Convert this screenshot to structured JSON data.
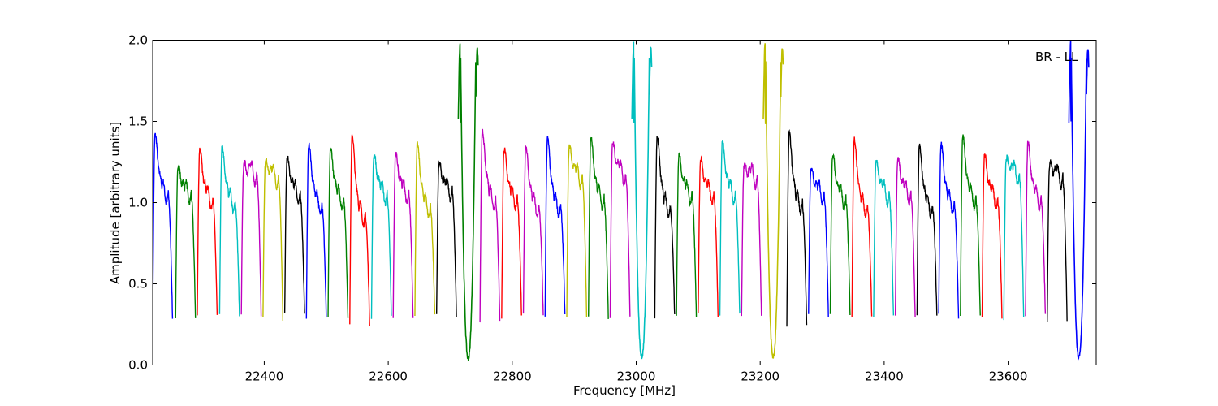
{
  "chart_data": {
    "type": "line",
    "title": "",
    "xlabel": "Frequency [MHz]",
    "ylabel": "Amplitude [arbitrary units]",
    "annotation": "BR - LL",
    "xlim": [
      22220,
      23742
    ],
    "ylim": [
      0,
      2
    ],
    "xticks": [
      22400,
      22600,
      22800,
      23000,
      23200,
      23400,
      23600
    ],
    "yticks": [
      0.0,
      0.5,
      1.0,
      1.5,
      2.0
    ],
    "xtick_labels": [
      "22400",
      "22600",
      "22800",
      "23000",
      "23200",
      "23400",
      "23600"
    ],
    "ytick_labels": [
      "0.0",
      "0.5",
      "1.0",
      "1.5",
      "2.0"
    ],
    "grid": false,
    "legend": "none",
    "color_cycle": [
      "#0000ff",
      "#008000",
      "#ff0000",
      "#00bfbf",
      "#bf00bf",
      "#bfbf00",
      "#000000"
    ],
    "subband_width_mhz": 32,
    "subbands": [
      {
        "x_start": 22220,
        "color": "#0000ff",
        "peak": 1.42,
        "shoulder": 1.08,
        "floor": 0.28
      },
      {
        "x_start": 22257,
        "color": "#008000",
        "peak": 1.22,
        "shoulder": 1.08,
        "floor": 0.3
      },
      {
        "x_start": 22292,
        "color": "#ff0000",
        "peak": 1.33,
        "shoulder": 1.05,
        "floor": 0.3
      },
      {
        "x_start": 22328,
        "color": "#00bfbf",
        "peak": 1.34,
        "shoulder": 1.03,
        "floor": 0.3
      },
      {
        "x_start": 22363,
        "color": "#bf00bf",
        "peak": 1.22,
        "shoulder": 1.2,
        "floor": 0.3
      },
      {
        "x_start": 22398,
        "color": "#bfbf00",
        "peak": 1.24,
        "shoulder": 1.18,
        "floor": 0.28
      },
      {
        "x_start": 22433,
        "color": "#000000",
        "peak": 1.27,
        "shoulder": 1.08,
        "floor": 0.3
      },
      {
        "x_start": 22468,
        "color": "#0000ff",
        "peak": 1.36,
        "shoulder": 1.02,
        "floor": 0.3
      },
      {
        "x_start": 22503,
        "color": "#008000",
        "peak": 1.33,
        "shoulder": 1.05,
        "floor": 0.3
      },
      {
        "x_start": 22538,
        "color": "#ff0000",
        "peak": 1.42,
        "shoulder": 0.95,
        "floor": 0.25
      },
      {
        "x_start": 22573,
        "color": "#00bfbf",
        "peak": 1.29,
        "shoulder": 1.08,
        "floor": 0.3
      },
      {
        "x_start": 22608,
        "color": "#bf00bf",
        "peak": 1.3,
        "shoulder": 1.08,
        "floor": 0.3
      },
      {
        "x_start": 22643,
        "color": "#bfbf00",
        "peak": 1.36,
        "shoulder": 1.0,
        "floor": 0.3
      },
      {
        "x_start": 22678,
        "color": "#000000",
        "peak": 1.23,
        "shoulder": 1.1,
        "floor": 0.3
      },
      {
        "x_start": 22713,
        "color": "#008000",
        "peak": 1.98,
        "shoulder": 1.2,
        "floor": 0.04
      },
      {
        "x_start": 22748,
        "color": "#bf00bf",
        "peak": 1.44,
        "shoulder": 1.05,
        "floor": 0.27
      },
      {
        "x_start": 22783,
        "color": "#ff0000",
        "peak": 1.33,
        "shoulder": 1.05,
        "floor": 0.3
      },
      {
        "x_start": 22818,
        "color": "#bf00bf",
        "peak": 1.35,
        "shoulder": 1.0,
        "floor": 0.3
      },
      {
        "x_start": 22853,
        "color": "#0000ff",
        "peak": 1.4,
        "shoulder": 1.0,
        "floor": 0.3
      },
      {
        "x_start": 22888,
        "color": "#bfbf00",
        "peak": 1.34,
        "shoulder": 1.18,
        "floor": 0.3
      },
      {
        "x_start": 22923,
        "color": "#008000",
        "peak": 1.4,
        "shoulder": 1.05,
        "floor": 0.3
      },
      {
        "x_start": 22958,
        "color": "#bf00bf",
        "peak": 1.36,
        "shoulder": 1.2,
        "floor": 0.3
      },
      {
        "x_start": 22993,
        "color": "#00bfbf",
        "peak": 1.99,
        "shoulder": 1.1,
        "floor": 0.05
      },
      {
        "x_start": 23030,
        "color": "#000000",
        "peak": 1.41,
        "shoulder": 1.0,
        "floor": 0.3
      },
      {
        "x_start": 23065,
        "color": "#008000",
        "peak": 1.29,
        "shoulder": 1.08,
        "floor": 0.3
      },
      {
        "x_start": 23100,
        "color": "#ff0000",
        "peak": 1.26,
        "shoulder": 1.08,
        "floor": 0.3
      },
      {
        "x_start": 23135,
        "color": "#00bfbf",
        "peak": 1.37,
        "shoulder": 1.08,
        "floor": 0.3
      },
      {
        "x_start": 23170,
        "color": "#bf00bf",
        "peak": 1.22,
        "shoulder": 1.18,
        "floor": 0.3
      },
      {
        "x_start": 23205,
        "color": "#bfbf00",
        "peak": 1.98,
        "shoulder": 1.1,
        "floor": 0.05
      },
      {
        "x_start": 23243,
        "color": "#000000",
        "peak": 1.43,
        "shoulder": 1.02,
        "floor": 0.25
      },
      {
        "x_start": 23278,
        "color": "#0000ff",
        "peak": 1.2,
        "shoulder": 1.08,
        "floor": 0.3
      },
      {
        "x_start": 23313,
        "color": "#008000",
        "peak": 1.29,
        "shoulder": 1.05,
        "floor": 0.3
      },
      {
        "x_start": 23348,
        "color": "#ff0000",
        "peak": 1.39,
        "shoulder": 1.0,
        "floor": 0.3
      },
      {
        "x_start": 23383,
        "color": "#00bfbf",
        "peak": 1.25,
        "shoulder": 1.08,
        "floor": 0.3
      },
      {
        "x_start": 23418,
        "color": "#bf00bf",
        "peak": 1.26,
        "shoulder": 1.08,
        "floor": 0.3
      },
      {
        "x_start": 23453,
        "color": "#000000",
        "peak": 1.35,
        "shoulder": 1.0,
        "floor": 0.3
      },
      {
        "x_start": 23488,
        "color": "#0000ff",
        "peak": 1.36,
        "shoulder": 1.02,
        "floor": 0.3
      },
      {
        "x_start": 23523,
        "color": "#008000",
        "peak": 1.41,
        "shoulder": 1.05,
        "floor": 0.3
      },
      {
        "x_start": 23558,
        "color": "#ff0000",
        "peak": 1.29,
        "shoulder": 1.05,
        "floor": 0.3
      },
      {
        "x_start": 23593,
        "color": "#00bfbf",
        "peak": 1.26,
        "shoulder": 1.2,
        "floor": 0.28
      },
      {
        "x_start": 23628,
        "color": "#bf00bf",
        "peak": 1.37,
        "shoulder": 1.05,
        "floor": 0.3
      },
      {
        "x_start": 23663,
        "color": "#000000",
        "peak": 1.23,
        "shoulder": 1.18,
        "floor": 0.28
      },
      {
        "x_start": 23698,
        "color": "#0000ff",
        "peak": 1.99,
        "shoulder": 1.2,
        "floor": 0.05
      }
    ]
  }
}
